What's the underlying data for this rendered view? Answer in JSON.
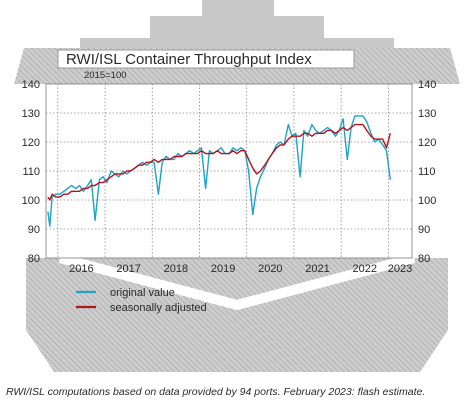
{
  "chart_data": {
    "type": "line",
    "title": "RWI/ISL Container Throughput Index",
    "subtitle": "2015=100",
    "ylim": [
      80,
      140
    ],
    "yticks": [
      80,
      90,
      100,
      110,
      120,
      130,
      140
    ],
    "xlim": [
      2015.75,
      2023.5
    ],
    "xticks": [
      "2016",
      "2017",
      "2018",
      "2019",
      "2020",
      "2021",
      "2022",
      "2023"
    ],
    "grid": true,
    "legend_position": "bottom-left",
    "series": [
      {
        "name": "original value",
        "color": "#1ba3c8",
        "points": [
          [
            2015.79,
            96
          ],
          [
            2015.83,
            91
          ],
          [
            2015.88,
            101
          ],
          [
            2015.96,
            102
          ],
          [
            2016.04,
            102
          ],
          [
            2016.13,
            103
          ],
          [
            2016.21,
            104
          ],
          [
            2016.29,
            105
          ],
          [
            2016.38,
            104
          ],
          [
            2016.46,
            105
          ],
          [
            2016.54,
            103
          ],
          [
            2016.63,
            105
          ],
          [
            2016.71,
            107
          ],
          [
            2016.79,
            93
          ],
          [
            2016.88,
            107
          ],
          [
            2016.96,
            108
          ],
          [
            2017.04,
            106
          ],
          [
            2017.13,
            110
          ],
          [
            2017.21,
            109
          ],
          [
            2017.29,
            108
          ],
          [
            2017.38,
            110
          ],
          [
            2017.46,
            109
          ],
          [
            2017.54,
            110
          ],
          [
            2017.63,
            111
          ],
          [
            2017.71,
            112
          ],
          [
            2017.79,
            113
          ],
          [
            2017.88,
            112
          ],
          [
            2017.96,
            113
          ],
          [
            2018.04,
            113
          ],
          [
            2018.13,
            102
          ],
          [
            2018.21,
            113
          ],
          [
            2018.29,
            115
          ],
          [
            2018.38,
            114
          ],
          [
            2018.46,
            114
          ],
          [
            2018.54,
            116
          ],
          [
            2018.63,
            115
          ],
          [
            2018.71,
            116
          ],
          [
            2018.79,
            117
          ],
          [
            2018.88,
            116
          ],
          [
            2018.96,
            117
          ],
          [
            2019.04,
            118
          ],
          [
            2019.13,
            104
          ],
          [
            2019.21,
            117
          ],
          [
            2019.29,
            116
          ],
          [
            2019.38,
            117
          ],
          [
            2019.46,
            118
          ],
          [
            2019.54,
            116
          ],
          [
            2019.63,
            116
          ],
          [
            2019.71,
            118
          ],
          [
            2019.79,
            117
          ],
          [
            2019.88,
            118
          ],
          [
            2019.96,
            117
          ],
          [
            2020.04,
            110
          ],
          [
            2020.13,
            95
          ],
          [
            2020.21,
            104
          ],
          [
            2020.29,
            108
          ],
          [
            2020.38,
            111
          ],
          [
            2020.46,
            114
          ],
          [
            2020.54,
            116
          ],
          [
            2020.63,
            119
          ],
          [
            2020.71,
            120
          ],
          [
            2020.79,
            119
          ],
          [
            2020.88,
            126
          ],
          [
            2020.96,
            122
          ],
          [
            2021.04,
            123
          ],
          [
            2021.13,
            108
          ],
          [
            2021.21,
            124
          ],
          [
            2021.29,
            122
          ],
          [
            2021.38,
            126
          ],
          [
            2021.46,
            124
          ],
          [
            2021.54,
            123
          ],
          [
            2021.63,
            124
          ],
          [
            2021.71,
            125
          ],
          [
            2021.79,
            124
          ],
          [
            2021.88,
            122
          ],
          [
            2021.96,
            124
          ],
          [
            2022.04,
            128
          ],
          [
            2022.13,
            114
          ],
          [
            2022.21,
            125
          ],
          [
            2022.29,
            129
          ],
          [
            2022.38,
            129
          ],
          [
            2022.46,
            129
          ],
          [
            2022.54,
            127
          ],
          [
            2022.63,
            123
          ],
          [
            2022.71,
            120
          ],
          [
            2022.79,
            121
          ],
          [
            2022.88,
            119
          ],
          [
            2022.96,
            117
          ],
          [
            2023.04,
            107
          ]
        ]
      },
      {
        "name": "seasonally adjusted",
        "color": "#b5121b",
        "points": [
          [
            2015.79,
            101
          ],
          [
            2015.83,
            100
          ],
          [
            2015.88,
            102
          ],
          [
            2015.96,
            101
          ],
          [
            2016.04,
            101
          ],
          [
            2016.13,
            102
          ],
          [
            2016.21,
            102
          ],
          [
            2016.29,
            103
          ],
          [
            2016.38,
            103
          ],
          [
            2016.46,
            103
          ],
          [
            2016.54,
            104
          ],
          [
            2016.63,
            104
          ],
          [
            2016.71,
            105
          ],
          [
            2016.79,
            105
          ],
          [
            2016.88,
            106
          ],
          [
            2016.96,
            106
          ],
          [
            2017.04,
            107
          ],
          [
            2017.13,
            108
          ],
          [
            2017.21,
            109
          ],
          [
            2017.29,
            109
          ],
          [
            2017.38,
            109
          ],
          [
            2017.46,
            110
          ],
          [
            2017.54,
            110
          ],
          [
            2017.63,
            111
          ],
          [
            2017.71,
            112
          ],
          [
            2017.79,
            112
          ],
          [
            2017.88,
            113
          ],
          [
            2017.96,
            113
          ],
          [
            2018.04,
            114
          ],
          [
            2018.13,
            113
          ],
          [
            2018.21,
            114
          ],
          [
            2018.29,
            114
          ],
          [
            2018.38,
            114
          ],
          [
            2018.46,
            115
          ],
          [
            2018.54,
            115
          ],
          [
            2018.63,
            115
          ],
          [
            2018.71,
            116
          ],
          [
            2018.79,
            116
          ],
          [
            2018.88,
            116
          ],
          [
            2018.96,
            116
          ],
          [
            2019.04,
            117
          ],
          [
            2019.13,
            116
          ],
          [
            2019.21,
            116
          ],
          [
            2019.29,
            116
          ],
          [
            2019.38,
            117
          ],
          [
            2019.46,
            116
          ],
          [
            2019.54,
            116
          ],
          [
            2019.63,
            116
          ],
          [
            2019.71,
            117
          ],
          [
            2019.79,
            116
          ],
          [
            2019.88,
            117
          ],
          [
            2019.96,
            117
          ],
          [
            2020.04,
            114
          ],
          [
            2020.13,
            111
          ],
          [
            2020.21,
            109
          ],
          [
            2020.29,
            110
          ],
          [
            2020.38,
            112
          ],
          [
            2020.46,
            114
          ],
          [
            2020.54,
            116
          ],
          [
            2020.63,
            118
          ],
          [
            2020.71,
            119
          ],
          [
            2020.79,
            119
          ],
          [
            2020.88,
            121
          ],
          [
            2020.96,
            122
          ],
          [
            2021.04,
            122
          ],
          [
            2021.13,
            122
          ],
          [
            2021.21,
            123
          ],
          [
            2021.29,
            123
          ],
          [
            2021.38,
            122
          ],
          [
            2021.46,
            123
          ],
          [
            2021.54,
            123
          ],
          [
            2021.63,
            123
          ],
          [
            2021.71,
            124
          ],
          [
            2021.79,
            124
          ],
          [
            2021.88,
            123
          ],
          [
            2021.96,
            124
          ],
          [
            2022.04,
            125
          ],
          [
            2022.13,
            124
          ],
          [
            2022.21,
            125
          ],
          [
            2022.29,
            126
          ],
          [
            2022.38,
            126
          ],
          [
            2022.46,
            126
          ],
          [
            2022.54,
            124
          ],
          [
            2022.63,
            122
          ],
          [
            2022.71,
            121
          ],
          [
            2022.79,
            121
          ],
          [
            2022.88,
            121
          ],
          [
            2022.96,
            118
          ],
          [
            2023.04,
            123
          ]
        ]
      }
    ]
  },
  "footnote": "RWI/ISL computations based on data provided by 94 ports. February 2023: flash estimate.",
  "colors": {
    "banner_fill": "#c9c9c9",
    "banner_hatch": "#9a9a9a",
    "plot_background": "#ffffff",
    "grid": "#8c8c8c"
  }
}
